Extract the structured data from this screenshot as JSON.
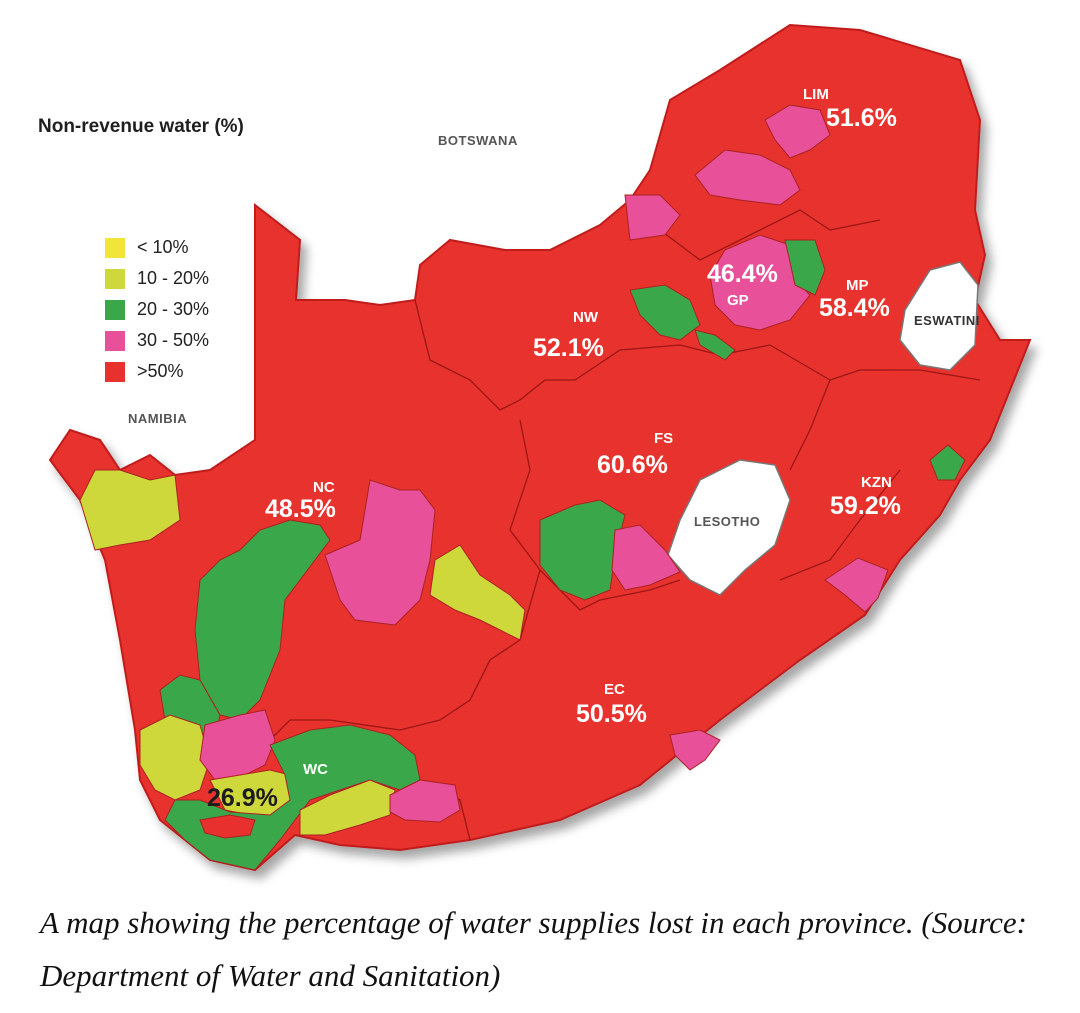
{
  "legend": {
    "title": "Non-revenue water (%)",
    "items": [
      {
        "label": "< 10%",
        "color": "#f2e53a"
      },
      {
        "label": "10 - 20%",
        "color": "#cfd83a"
      },
      {
        "label": "20 - 30%",
        "color": "#3aa84a"
      },
      {
        "label": "30 - 50%",
        "color": "#e8509a"
      },
      {
        "label": ">50%",
        "color": "#e8302e"
      }
    ]
  },
  "countries": {
    "botswana": "BOTSWANA",
    "namibia": "NAMIBIA",
    "lesotho": "LESOTHO",
    "eswatini": "ESWATINI"
  },
  "provinces": {
    "lim": {
      "code": "LIM",
      "value": "51.6%"
    },
    "gp": {
      "code": "GP",
      "value": "46.4%"
    },
    "mp": {
      "code": "MP",
      "value": "58.4%"
    },
    "nw": {
      "code": "NW",
      "value": "52.1%"
    },
    "fs": {
      "code": "FS",
      "value": "60.6%"
    },
    "kzn": {
      "code": "KZN",
      "value": "59.2%"
    },
    "nc": {
      "code": "NC",
      "value": "48.5%"
    },
    "ec": {
      "code": "EC",
      "value": "50.5%"
    },
    "wc": {
      "code": "WC",
      "value": "26.9%"
    }
  },
  "caption": "A map showing the percentage of water supplies lost in each province. (Source: Department of Water and Sanitation)",
  "colors": {
    "red": "#e8302e",
    "pink": "#e8509a",
    "green": "#3aa84a",
    "lime": "#cfd83a",
    "border": "#8a1010"
  }
}
